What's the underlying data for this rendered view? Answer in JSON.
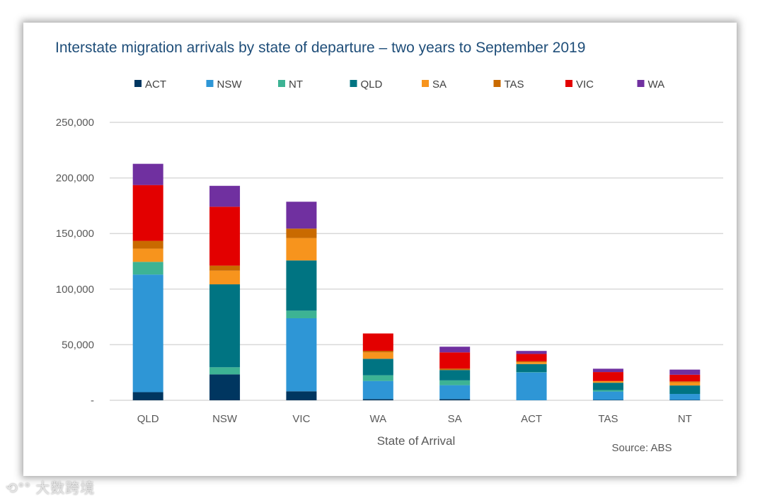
{
  "chart_data": {
    "type": "bar",
    "stacked": true,
    "title": "Interstate migration arrivals by state of departure – two years to September 2019",
    "xlabel": "State of Arrival",
    "ylabel": "",
    "ylim": [
      0,
      250000
    ],
    "yticks": [
      0,
      50000,
      100000,
      150000,
      200000,
      250000
    ],
    "ytick_labels": [
      "-",
      "50,000",
      "100,000",
      "150,000",
      "200,000",
      "250,000"
    ],
    "grid": true,
    "legend_position": "top",
    "source": "Source: ABS",
    "categories": [
      "QLD",
      "NSW",
      "VIC",
      "WA",
      "SA",
      "ACT",
      "TAS",
      "NT"
    ],
    "series": [
      {
        "name": "ACT",
        "color": "#003660",
        "values": [
          7300,
          23300,
          8100,
          1100,
          1100,
          0,
          300,
          300
        ]
      },
      {
        "name": "NSW",
        "color": "#2e96d6",
        "values": [
          105800,
          0,
          65700,
          16300,
          12500,
          25100,
          7600,
          5400
        ]
      },
      {
        "name": "NT",
        "color": "#3db394",
        "values": [
          11400,
          6400,
          6800,
          5100,
          4300,
          300,
          1300,
          0
        ]
      },
      {
        "name": "QLD",
        "color": "#007482",
        "values": [
          0,
          74600,
          45200,
          14800,
          9300,
          7200,
          6600,
          7600
        ]
      },
      {
        "name": "SA",
        "color": "#f7941d",
        "values": [
          11900,
          12300,
          20100,
          5800,
          0,
          1700,
          1500,
          2900
        ]
      },
      {
        "name": "TAS",
        "color": "#c96a00",
        "values": [
          7000,
          4500,
          8500,
          1400,
          1300,
          800,
          0,
          800
        ]
      },
      {
        "name": "VIC",
        "color": "#e30000",
        "values": [
          50200,
          53000,
          0,
          15600,
          14600,
          6600,
          8100,
          6000
        ]
      },
      {
        "name": "WA",
        "color": "#7030a0",
        "values": [
          19100,
          18800,
          24200,
          0,
          5100,
          2700,
          3000,
          4600
        ]
      }
    ]
  },
  "watermark": "大数跨境"
}
